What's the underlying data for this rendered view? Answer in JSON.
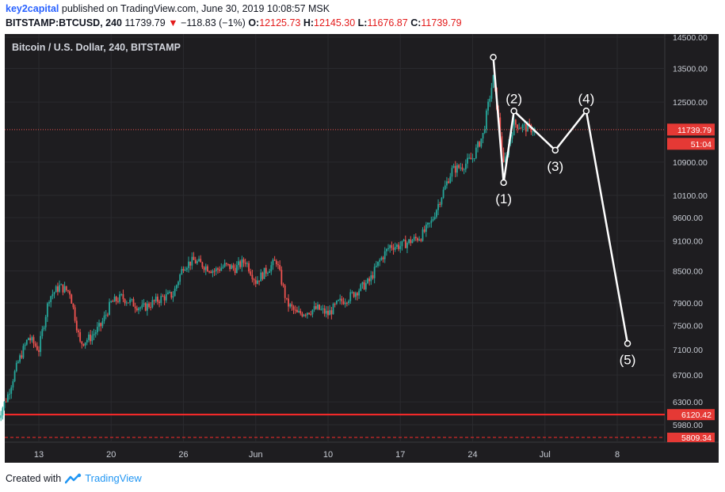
{
  "header": {
    "author": "key2capital",
    "published_text": " published on TradingView.com, June 30, 2019 10:08:57 MSK",
    "symbol": "BITSTAMP:BTCUSD, 240",
    "last": "11739.79",
    "change_arrow": "▼",
    "change": "−118.83 (−1%)",
    "open_label": "O:",
    "open": "12125.73",
    "high_label": "H:",
    "high": "12145.30",
    "low_label": "L:",
    "low": "11676.87",
    "close_label": "C:",
    "close": "11739.79"
  },
  "footer": {
    "created_with": "Created with",
    "brand": "TradingView",
    "brand_icon": "tradingview-logo-icon"
  },
  "colors": {
    "background": "#1e1d20",
    "up": "#26a69a",
    "down": "#ef5350",
    "support": "#ff2a2a",
    "wave": "#ffffff",
    "price_tag": "#e53935"
  },
  "chart_data": {
    "type": "candlestick",
    "title": "Bitcoin / U.S. Dollar, 240, BITSTAMP",
    "price_axis": {
      "scale": "log",
      "ticks": [
        "14500.00",
        "13500.00",
        "12500.00",
        "10900.00",
        "10100.00",
        "9600.00",
        "9100.00",
        "8500.00",
        "7900.00",
        "7500.00",
        "7100.00",
        "6700.00",
        "6300.00",
        "5980.00"
      ]
    },
    "time_axis": {
      "labels": [
        "13",
        "20",
        "26",
        "Jun",
        "10",
        "17",
        "24",
        "Jul",
        "8"
      ]
    },
    "last_price": {
      "value": "11739.79",
      "countdown": "51:04"
    },
    "levels": [
      {
        "value": "6120.42",
        "style": "solid"
      },
      {
        "value": "5809.34",
        "style": "dashed"
      }
    ],
    "waves": [
      {
        "label": "(1)",
        "date": "2019-06-27",
        "price": 10400
      },
      {
        "label": "(2)",
        "date": "2019-06-28",
        "price": 12250
      },
      {
        "label": "(3)",
        "date": "2019-07-02",
        "price": 11200
      },
      {
        "label": "(4)",
        "date": "2019-07-05",
        "price": 12250
      },
      {
        "label": "(5)",
        "date": "2019-07-09",
        "price": 7200
      }
    ],
    "wave_start": {
      "date": "2019-06-26",
      "price": 13850
    },
    "price_path": [
      [
        "2019-05-09",
        6050
      ],
      [
        "2019-05-10",
        6400
      ],
      [
        "2019-05-11",
        6900
      ],
      [
        "2019-05-12",
        7300
      ],
      [
        "2019-05-13",
        7100
      ],
      [
        "2019-05-14",
        8000
      ],
      [
        "2019-05-15",
        8200
      ],
      [
        "2019-05-16",
        8100
      ],
      [
        "2019-05-17",
        7200
      ],
      [
        "2019-05-18",
        7300
      ],
      [
        "2019-05-19",
        7500
      ],
      [
        "2019-05-20",
        7900
      ],
      [
        "2019-05-21",
        8000
      ],
      [
        "2019-05-22",
        7900
      ],
      [
        "2019-05-23",
        7800
      ],
      [
        "2019-05-24",
        7900
      ],
      [
        "2019-05-25",
        8000
      ],
      [
        "2019-05-26",
        8050
      ],
      [
        "2019-05-27",
        8600
      ],
      [
        "2019-05-28",
        8700
      ],
      [
        "2019-05-29",
        8600
      ],
      [
        "2019-05-30",
        8500
      ],
      [
        "2019-05-31",
        8600
      ],
      [
        "2019-06-01",
        8550
      ],
      [
        "2019-06-02",
        8700
      ],
      [
        "2019-06-03",
        8300
      ],
      [
        "2019-06-04",
        8500
      ],
      [
        "2019-06-05",
        8700
      ],
      [
        "2019-06-06",
        7900
      ],
      [
        "2019-06-07",
        7700
      ],
      [
        "2019-06-08",
        7750
      ],
      [
        "2019-06-09",
        7800
      ],
      [
        "2019-06-10",
        7700
      ],
      [
        "2019-06-11",
        7900
      ],
      [
        "2019-06-12",
        8000
      ],
      [
        "2019-06-13",
        8150
      ],
      [
        "2019-06-14",
        8300
      ],
      [
        "2019-06-15",
        8700
      ],
      [
        "2019-06-16",
        9000
      ],
      [
        "2019-06-17",
        9000
      ],
      [
        "2019-06-18",
        9100
      ],
      [
        "2019-06-19",
        9200
      ],
      [
        "2019-06-20",
        9500
      ],
      [
        "2019-06-21",
        10100
      ],
      [
        "2019-06-22",
        10700
      ],
      [
        "2019-06-23",
        10800
      ],
      [
        "2019-06-24",
        11000
      ],
      [
        "2019-06-25",
        11600
      ],
      [
        "2019-06-26",
        13200
      ],
      [
        "2019-06-27",
        10800
      ],
      [
        "2019-06-28",
        11900
      ],
      [
        "2019-06-29",
        11800
      ],
      [
        "2019-06-30",
        11739.79
      ]
    ]
  }
}
